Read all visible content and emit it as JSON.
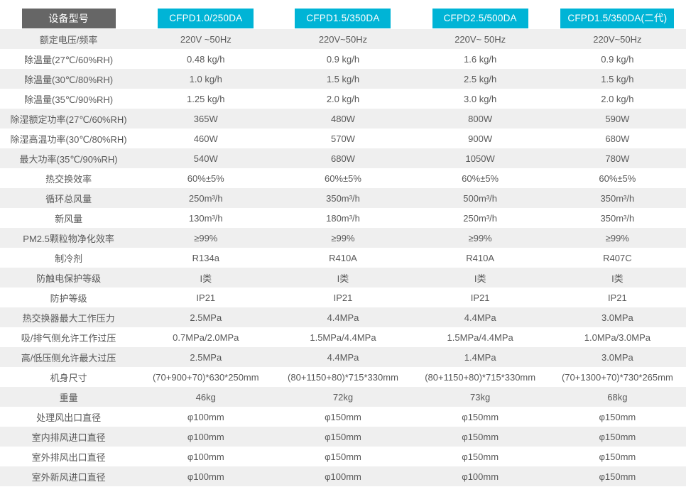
{
  "colors": {
    "accent": "#00b4d6",
    "corner_header_bg": "#666666",
    "stripe": "#efefef",
    "header_text": "#ffffff",
    "body_text": "#595959"
  },
  "chart_data": {
    "type": "table",
    "corner_label": "设备型号",
    "columns": [
      "CFPD1.0/250DA",
      "CFPD1.5/350DA",
      "CFPD2.5/500DA",
      "CFPD1.5/350DA(二代)"
    ],
    "rows": [
      {
        "label": "额定电压/频率",
        "values": [
          "220V ~50Hz",
          "220V~50Hz",
          "220V~ 50Hz",
          "220V~50Hz"
        ]
      },
      {
        "label": "除温量(27℃/60%RH)",
        "values": [
          "0.48 kg/h",
          "0.9 kg/h",
          "1.6 kg/h",
          "0.9 kg/h"
        ]
      },
      {
        "label": "除温量(30℃/80%RH)",
        "values": [
          "1.0 kg/h",
          "1.5 kg/h",
          "2.5 kg/h",
          "1.5 kg/h"
        ]
      },
      {
        "label": "除温量(35℃/90%RH)",
        "values": [
          "1.25 kg/h",
          "2.0 kg/h",
          "3.0 kg/h",
          "2.0 kg/h"
        ]
      },
      {
        "label": "除湿额定功率(27℃/60%RH)",
        "values": [
          "365W",
          "480W",
          "800W",
          "590W"
        ]
      },
      {
        "label": "除湿高温功率(30℃/80%RH)",
        "values": [
          "460W",
          "570W",
          "900W",
          "680W"
        ]
      },
      {
        "label": "最大功率(35℃/90%RH)",
        "values": [
          "540W",
          "680W",
          "1050W",
          "780W"
        ]
      },
      {
        "label": "热交换效率",
        "values": [
          "60%±5%",
          "60%±5%",
          "60%±5%",
          "60%±5%"
        ]
      },
      {
        "label": "循环总风量",
        "values": [
          "250m³/h",
          "350m³/h",
          "500m³/h",
          "350m³/h"
        ]
      },
      {
        "label": "新风量",
        "values": [
          "130m³/h",
          "180m³/h",
          "250m³/h",
          "350m³/h"
        ]
      },
      {
        "label": "PM2.5颗粒物净化效率",
        "values": [
          "≥99%",
          "≥99%",
          "≥99%",
          "≥99%"
        ]
      },
      {
        "label": "制冷剂",
        "values": [
          "R134a",
          "R410A",
          "R410A",
          "R407C"
        ]
      },
      {
        "label": "防触电保护等级",
        "values": [
          "I类",
          "I类",
          "I类",
          "I类"
        ]
      },
      {
        "label": "防护等级",
        "values": [
          "IP21",
          "IP21",
          "IP21",
          "IP21"
        ]
      },
      {
        "label": "热交换器最大工作压力",
        "values": [
          "2.5MPa",
          "4.4MPa",
          "4.4MPa",
          "3.0MPa"
        ]
      },
      {
        "label": "吸/排气侧允许工作过压",
        "values": [
          "0.7MPa/2.0MPa",
          "1.5MPa/4.4MPa",
          "1.5MPa/4.4MPa",
          "1.0MPa/3.0MPa"
        ]
      },
      {
        "label": "高/低压侧允许最大过压",
        "values": [
          "2.5MPa",
          "4.4MPa",
          "1.4MPa",
          "3.0MPa"
        ]
      },
      {
        "label": "机身尺寸",
        "values": [
          "(70+900+70)*630*250mm",
          "(80+1150+80)*715*330mm",
          "(80+1150+80)*715*330mm",
          "(70+1300+70)*730*265mm"
        ]
      },
      {
        "label": "重量",
        "values": [
          "46kg",
          "72kg",
          "73kg",
          "68kg"
        ]
      },
      {
        "label": "处理风出口直径",
        "values": [
          "φ100mm",
          "φ150mm",
          "φ150mm",
          "φ150mm"
        ]
      },
      {
        "label": "室内排风进口直径",
        "values": [
          "φ100mm",
          "φ150mm",
          "φ150mm",
          "φ150mm"
        ]
      },
      {
        "label": "室外排风出口直径",
        "values": [
          "φ100mm",
          "φ150mm",
          "φ150mm",
          "φ150mm"
        ]
      },
      {
        "label": "室外新风进口直径",
        "values": [
          "φ100mm",
          "φ100mm",
          "φ100mm",
          "φ150mm"
        ]
      }
    ]
  }
}
